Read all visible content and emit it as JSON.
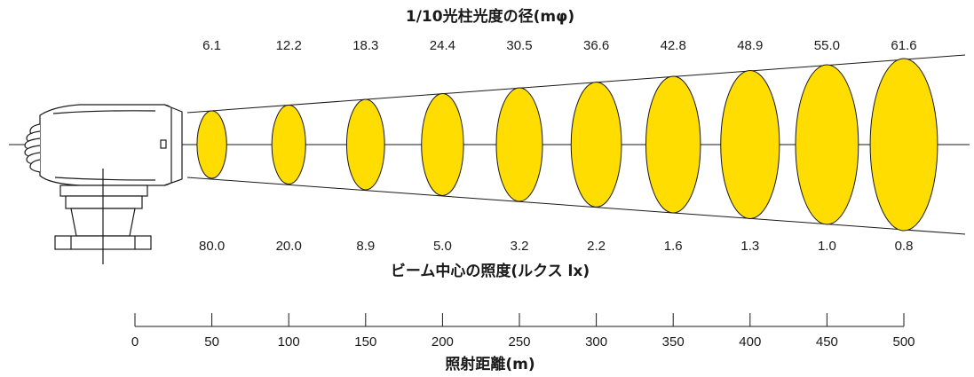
{
  "top_heading": "1/10光柱光度の径(mφ)",
  "middle_heading": "ビーム中心の照度(ルクス lx)",
  "bottom_heading": "照射距離(m)",
  "colors": {
    "beam": "#FFDD00",
    "stroke": "#1a1a1a",
    "background": "#ffffff"
  },
  "device_icon": "searchlight-icon",
  "chart_data": {
    "type": "beam-profile",
    "distances_m": [
      50,
      100,
      150,
      200,
      250,
      300,
      350,
      400,
      450,
      500
    ],
    "diameters": [
      "6.1",
      "12.2",
      "18.3",
      "24.4",
      "30.5",
      "36.6",
      "42.8",
      "48.9",
      "55.0",
      "61.6"
    ],
    "illuminance": [
      "80.0",
      "20.0",
      "8.9",
      "5.0",
      "3.2",
      "2.2",
      "1.6",
      "1.3",
      "1.0",
      "0.8"
    ],
    "axis": {
      "ticks": [
        "0",
        "50",
        "100",
        "150",
        "200",
        "250",
        "300",
        "350",
        "400",
        "450",
        "500"
      ],
      "range": [
        0,
        500
      ]
    }
  }
}
